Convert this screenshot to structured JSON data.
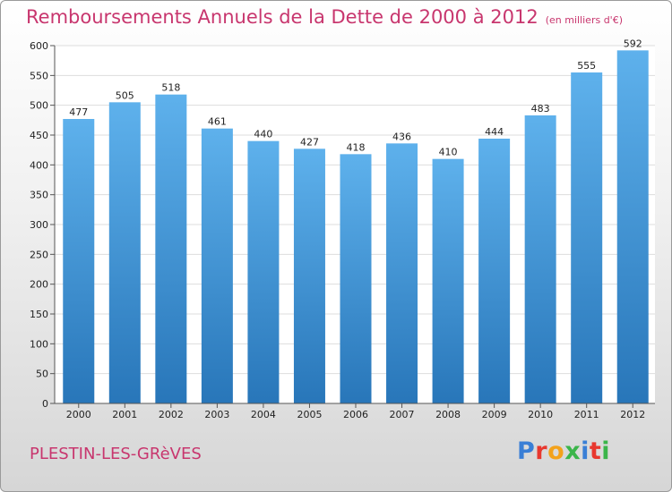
{
  "title": "Remboursements Annuels de la Dette de 2000 à 2012",
  "unit": "(en milliers d'€)",
  "commune": "PLESTIN-LES-GRèVES",
  "logo": {
    "letters": [
      "P",
      "r",
      "o",
      "x",
      "i",
      "t",
      "i"
    ],
    "colors": [
      "#3a7fd6",
      "#e8382f",
      "#f3a21b",
      "#3bb54a",
      "#3a7fd6",
      "#e8382f",
      "#3bb54a"
    ]
  },
  "chart_data": {
    "type": "bar",
    "categories": [
      "2000",
      "2001",
      "2002",
      "2003",
      "2004",
      "2005",
      "2006",
      "2007",
      "2008",
      "2009",
      "2010",
      "2011",
      "2012"
    ],
    "values": [
      477,
      505,
      518,
      461,
      440,
      427,
      418,
      436,
      410,
      444,
      483,
      555,
      592
    ],
    "title": "Remboursements Annuels de la Dette de 2000 à 2012",
    "xlabel": "",
    "ylabel": "",
    "ylim": [
      0,
      600
    ],
    "yticks": [
      0,
      50,
      100,
      150,
      200,
      250,
      300,
      350,
      400,
      450,
      500,
      550,
      600
    ],
    "grid": true,
    "bar_color_top": "#5eb1ec",
    "bar_color_bottom": "#2876b9"
  }
}
